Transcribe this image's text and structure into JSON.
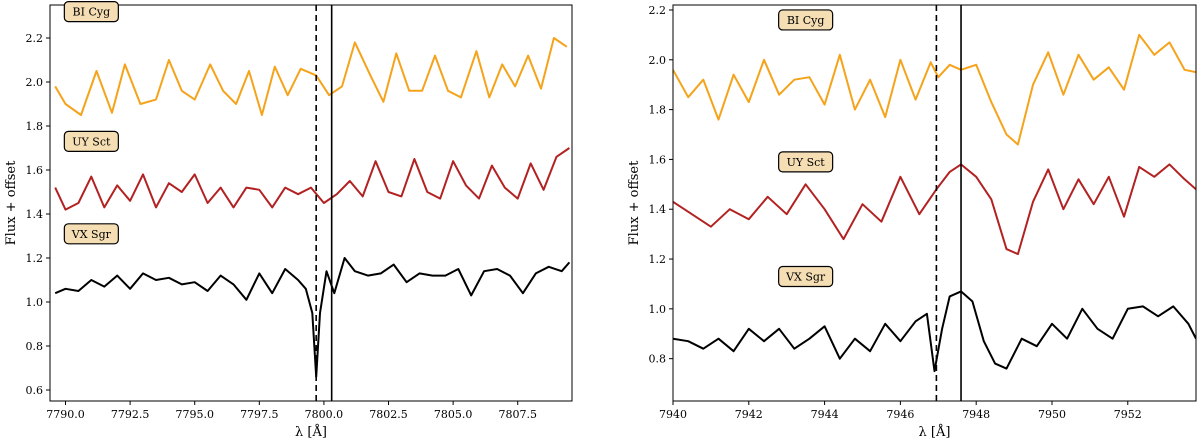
{
  "chart_data": [
    {
      "type": "line",
      "xlabel": "λ [Å]",
      "ylabel": "Flux + offset",
      "xlim": [
        7789.4,
        7809.6
      ],
      "ylim": [
        0.55,
        2.35
      ],
      "xticks": [
        7790.0,
        7792.5,
        7795.0,
        7797.5,
        7800.0,
        7802.5,
        7805.0,
        7807.5
      ],
      "xtick_labels": [
        "7790.0",
        "7792.5",
        "7795.0",
        "7797.5",
        "7800.0",
        "7802.5",
        "7805.0",
        "7807.5"
      ],
      "yticks": [
        0.6,
        0.8,
        1.0,
        1.2,
        1.4,
        1.6,
        1.8,
        2.0,
        2.2
      ],
      "ytick_labels": [
        "0.6",
        "0.8",
        "1.0",
        "1.2",
        "1.4",
        "1.6",
        "1.8",
        "2.0",
        "2.2"
      ],
      "vlines": [
        {
          "x": 7799.7,
          "style": "dashed"
        },
        {
          "x": 7800.3,
          "style": "solid"
        }
      ],
      "grid": false,
      "series": [
        {
          "name": "BI Cyg",
          "color": "#f5a31a",
          "label_anchor": [
            7791.0,
            2.32
          ],
          "x": [
            7789.6,
            7790.0,
            7790.6,
            7791.2,
            7791.8,
            7792.3,
            7792.9,
            7793.5,
            7794.0,
            7794.5,
            7795.0,
            7795.6,
            7796.1,
            7796.6,
            7797.1,
            7797.6,
            7798.1,
            7798.6,
            7799.1,
            7799.7,
            7800.2,
            7800.7,
            7801.2,
            7801.8,
            7802.3,
            7802.8,
            7803.3,
            7803.8,
            7804.3,
            7804.8,
            7805.3,
            7805.9,
            7806.4,
            7806.9,
            7807.4,
            7807.9,
            7808.4,
            7808.9,
            7809.4
          ],
          "values": [
            1.98,
            1.9,
            1.85,
            2.05,
            1.86,
            2.08,
            1.9,
            1.92,
            2.1,
            1.96,
            1.92,
            2.08,
            1.96,
            1.9,
            2.05,
            1.85,
            2.07,
            1.94,
            2.06,
            2.03,
            1.94,
            1.98,
            2.18,
            2.03,
            1.91,
            2.13,
            1.96,
            1.96,
            2.12,
            1.96,
            1.93,
            2.14,
            1.93,
            2.08,
            1.98,
            2.12,
            1.97,
            2.2,
            2.16
          ]
        },
        {
          "name": "UY Sct",
          "color": "#b22222",
          "label_anchor": [
            7791.0,
            1.73
          ],
          "x": [
            7789.6,
            7790.0,
            7790.5,
            7791.0,
            7791.5,
            7792.0,
            7792.5,
            7793.0,
            7793.5,
            7794.0,
            7794.5,
            7795.0,
            7795.5,
            7796.0,
            7796.5,
            7797.0,
            7797.5,
            7798.0,
            7798.5,
            7799.0,
            7799.5,
            7800.0,
            7800.5,
            7801.0,
            7801.5,
            7802.0,
            7802.5,
            7803.0,
            7803.5,
            7804.0,
            7804.5,
            7805.0,
            7805.5,
            7806.0,
            7806.5,
            7807.0,
            7807.5,
            7808.0,
            7808.5,
            7809.0,
            7809.5
          ],
          "values": [
            1.52,
            1.42,
            1.45,
            1.57,
            1.43,
            1.53,
            1.46,
            1.58,
            1.43,
            1.54,
            1.5,
            1.58,
            1.45,
            1.52,
            1.43,
            1.52,
            1.51,
            1.43,
            1.52,
            1.49,
            1.52,
            1.45,
            1.49,
            1.55,
            1.48,
            1.64,
            1.5,
            1.48,
            1.65,
            1.5,
            1.47,
            1.64,
            1.53,
            1.47,
            1.62,
            1.52,
            1.47,
            1.63,
            1.51,
            1.66,
            1.7
          ]
        },
        {
          "name": "VX Sgr",
          "color": "#000000",
          "label_anchor": [
            7791.0,
            1.31
          ],
          "x": [
            7789.6,
            7790.0,
            7790.5,
            7791.0,
            7791.5,
            7792.0,
            7792.5,
            7793.0,
            7793.5,
            7794.0,
            7794.5,
            7795.0,
            7795.5,
            7796.0,
            7796.5,
            7797.0,
            7797.5,
            7798.0,
            7798.5,
            7799.0,
            7799.3,
            7799.55,
            7799.7,
            7799.85,
            7800.1,
            7800.4,
            7800.8,
            7801.2,
            7801.7,
            7802.2,
            7802.7,
            7803.2,
            7803.7,
            7804.2,
            7804.7,
            7805.2,
            7805.7,
            7806.2,
            7806.7,
            7807.2,
            7807.7,
            7808.2,
            7808.7,
            7809.2,
            7809.5
          ],
          "values": [
            1.04,
            1.06,
            1.05,
            1.1,
            1.07,
            1.12,
            1.06,
            1.13,
            1.1,
            1.11,
            1.08,
            1.09,
            1.05,
            1.12,
            1.08,
            1.01,
            1.13,
            1.04,
            1.15,
            1.1,
            1.06,
            0.95,
            0.66,
            0.95,
            1.14,
            1.04,
            1.2,
            1.14,
            1.12,
            1.13,
            1.17,
            1.09,
            1.13,
            1.12,
            1.12,
            1.15,
            1.03,
            1.14,
            1.15,
            1.12,
            1.04,
            1.13,
            1.16,
            1.14,
            1.18
          ]
        }
      ]
    },
    {
      "type": "line",
      "xlabel": "λ [Å]",
      "ylabel": "Flux + offset",
      "xlim": [
        7940.0,
        7953.8
      ],
      "ylim": [
        0.63,
        2.22
      ],
      "xticks": [
        7940,
        7942,
        7944,
        7946,
        7948,
        7950,
        7952
      ],
      "xtick_labels": [
        "7940",
        "7942",
        "7944",
        "7946",
        "7948",
        "7950",
        "7952"
      ],
      "yticks": [
        0.8,
        1.0,
        1.2,
        1.4,
        1.6,
        1.8,
        2.0,
        2.2
      ],
      "ytick_labels": [
        "0.8",
        "1.0",
        "1.2",
        "1.4",
        "1.6",
        "1.8",
        "2.0",
        "2.2"
      ],
      "vlines": [
        {
          "x": 7946.95,
          "style": "dashed"
        },
        {
          "x": 7947.6,
          "style": "solid"
        }
      ],
      "grid": false,
      "series": [
        {
          "name": "BI Cyg",
          "color": "#f5a31a",
          "label_anchor": [
            7943.5,
            2.16
          ],
          "x": [
            7940.0,
            7940.4,
            7940.8,
            7941.2,
            7941.6,
            7942.0,
            7942.4,
            7942.8,
            7943.2,
            7943.6,
            7944.0,
            7944.4,
            7944.8,
            7945.2,
            7945.6,
            7946.0,
            7946.4,
            7946.8,
            7947.0,
            7947.3,
            7947.6,
            7948.0,
            7948.4,
            7948.8,
            7949.1,
            7949.5,
            7949.9,
            7950.3,
            7950.7,
            7951.1,
            7951.5,
            7951.9,
            7952.3,
            7952.7,
            7953.1,
            7953.5,
            7953.8
          ],
          "values": [
            1.96,
            1.85,
            1.92,
            1.76,
            1.94,
            1.83,
            2.0,
            1.86,
            1.92,
            1.93,
            1.82,
            2.02,
            1.8,
            1.92,
            1.77,
            2.0,
            1.84,
            1.99,
            1.93,
            1.98,
            1.96,
            1.98,
            1.83,
            1.7,
            1.66,
            1.9,
            2.03,
            1.86,
            2.02,
            1.92,
            1.97,
            1.88,
            2.1,
            2.02,
            2.07,
            1.96,
            1.95
          ]
        },
        {
          "name": "UY Sct",
          "color": "#b22222",
          "label_anchor": [
            7943.5,
            1.59
          ],
          "x": [
            7940.0,
            7940.5,
            7941.0,
            7941.5,
            7942.0,
            7942.5,
            7943.0,
            7943.5,
            7944.0,
            7944.5,
            7945.0,
            7945.5,
            7946.0,
            7946.5,
            7946.95,
            7947.3,
            7947.6,
            7948.0,
            7948.4,
            7948.8,
            7949.1,
            7949.5,
            7949.9,
            7950.3,
            7950.7,
            7951.1,
            7951.5,
            7951.9,
            7952.3,
            7952.7,
            7953.1,
            7953.5,
            7953.8
          ],
          "values": [
            1.43,
            1.38,
            1.33,
            1.4,
            1.36,
            1.45,
            1.38,
            1.5,
            1.4,
            1.28,
            1.42,
            1.35,
            1.53,
            1.38,
            1.48,
            1.55,
            1.58,
            1.53,
            1.44,
            1.24,
            1.22,
            1.43,
            1.56,
            1.4,
            1.52,
            1.42,
            1.53,
            1.37,
            1.57,
            1.53,
            1.58,
            1.52,
            1.48
          ]
        },
        {
          "name": "VX Sgr",
          "color": "#000000",
          "label_anchor": [
            7943.5,
            1.13
          ],
          "x": [
            7940.0,
            7940.4,
            7940.8,
            7941.2,
            7941.6,
            7942.0,
            7942.4,
            7942.8,
            7943.2,
            7943.6,
            7944.0,
            7944.4,
            7944.8,
            7945.2,
            7945.6,
            7946.0,
            7946.4,
            7946.7,
            7946.9,
            7947.1,
            7947.3,
            7947.6,
            7947.9,
            7948.2,
            7948.5,
            7948.8,
            7949.2,
            7949.6,
            7950.0,
            7950.4,
            7950.8,
            7951.2,
            7951.6,
            7952.0,
            7952.4,
            7952.8,
            7953.2,
            7953.6,
            7953.8
          ],
          "values": [
            0.88,
            0.87,
            0.84,
            0.88,
            0.83,
            0.92,
            0.87,
            0.92,
            0.84,
            0.88,
            0.93,
            0.8,
            0.88,
            0.83,
            0.94,
            0.87,
            0.95,
            0.98,
            0.75,
            0.92,
            1.05,
            1.07,
            1.03,
            0.87,
            0.78,
            0.76,
            0.88,
            0.85,
            0.94,
            0.88,
            1.0,
            0.92,
            0.88,
            1.0,
            1.01,
            0.97,
            1.01,
            0.94,
            0.88
          ]
        }
      ]
    }
  ]
}
